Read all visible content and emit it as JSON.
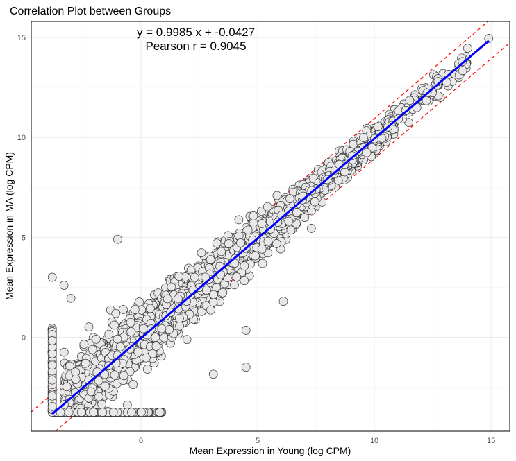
{
  "chart_data": {
    "type": "scatter",
    "title": "Correlation Plot between Groups",
    "xlabel": "Mean Expression in Young (log CPM)",
    "ylabel": "Mean Expression in MA (log CPM)",
    "xlim": [
      -4.7,
      15.8
    ],
    "ylim": [
      -4.7,
      15.8
    ],
    "xticks": [
      0,
      5,
      10,
      15
    ],
    "yticks": [
      0,
      5,
      10,
      15
    ],
    "tick_labels": {
      "x": [
        "0",
        "5",
        "10",
        "15"
      ],
      "y": [
        "0",
        "5",
        "10",
        "15"
      ]
    },
    "grid": true,
    "annotations": {
      "equation": "y = 0.9985 x + -0.0427",
      "pearson": "Pearson r = 0.9045"
    },
    "fit_line": {
      "slope": 0.9985,
      "intercept": -0.0427,
      "x_range": [
        -3.8,
        14.9
      ],
      "color": "#0000ff"
    },
    "band_lines": {
      "offset": 1.0,
      "color": "#ff0000"
    },
    "point_style": {
      "fill": "#e8e8e8",
      "stroke": "#333333"
    },
    "notable_points": [
      {
        "x": 14.9,
        "y": 14.95
      },
      {
        "x": -1.0,
        "y": 4.9
      },
      {
        "x": -3.8,
        "y": 3.0
      },
      {
        "x": -3.3,
        "y": 2.6
      },
      {
        "x": -3.0,
        "y": 1.95
      },
      {
        "x": 4.5,
        "y": -1.5
      },
      {
        "x": 4.5,
        "y": 0.35
      },
      {
        "x": 3.1,
        "y": -1.85
      },
      {
        "x": 6.1,
        "y": 1.8
      },
      {
        "x": 7.3,
        "y": 5.45
      }
    ],
    "point_cloud": {
      "description_free": true,
      "floor_y": -3.75,
      "floor_x_range": [
        -3.8,
        0.9
      ],
      "left_column_x": -3.8,
      "left_column_y_range": [
        -3.75,
        0.45
      ]
    }
  }
}
